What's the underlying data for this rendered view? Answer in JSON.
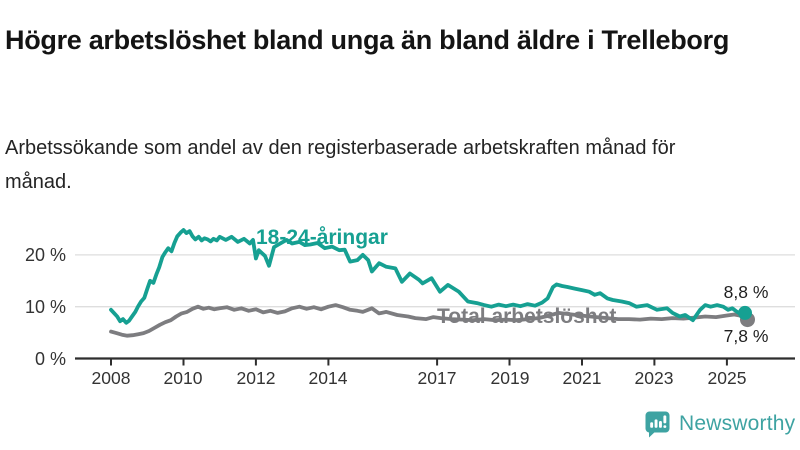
{
  "header": {
    "title": "Högre arbetslöshet bland unga än bland äldre i Trelleborg",
    "subtitle": "Arbetssökande som andel av den registerbaserade arbetskraften månad för månad."
  },
  "branding": {
    "name": "Newsworthy",
    "color": "#3ea3a2",
    "icon": "newsworthy-chart-bubble-icon"
  },
  "chart_data": {
    "type": "line",
    "title": "Högre arbetslöshet bland unga än bland äldre i Trelleborg",
    "subtitle": "Arbetssökande som andel av den registerbaserade arbetskraften månad för månad.",
    "unit": "%",
    "grid": "horizontal-only",
    "x_axis": {
      "ticks": [
        2008,
        2010,
        2012,
        2014,
        2017,
        2019,
        2021,
        2023,
        2025
      ],
      "tick_labels": [
        "2008",
        "2010",
        "2012",
        "2014",
        "2017",
        "2019",
        "2021",
        "2023",
        "2025"
      ],
      "range": [
        2007.0,
        2025.9
      ]
    },
    "y_axis": {
      "ticks": [
        0,
        10,
        20
      ],
      "tick_labels": [
        "0 %",
        "10 %",
        "20 %"
      ],
      "range": [
        0,
        27
      ]
    },
    "series": [
      {
        "name": "18-24-åringar",
        "color": "#16a092",
        "end_value": 8.8,
        "end_label": "8,8 %",
        "points": [
          [
            2008.0,
            9.4
          ],
          [
            2008.08,
            8.8
          ],
          [
            2008.17,
            8.1
          ],
          [
            2008.25,
            7.2
          ],
          [
            2008.33,
            7.6
          ],
          [
            2008.42,
            6.9
          ],
          [
            2008.5,
            7.3
          ],
          [
            2008.58,
            8.1
          ],
          [
            2008.67,
            9.0
          ],
          [
            2008.75,
            10.1
          ],
          [
            2008.83,
            11.0
          ],
          [
            2008.92,
            11.7
          ],
          [
            2009.0,
            13.4
          ],
          [
            2009.08,
            15.0
          ],
          [
            2009.17,
            14.6
          ],
          [
            2009.25,
            16.2
          ],
          [
            2009.33,
            17.6
          ],
          [
            2009.42,
            19.6
          ],
          [
            2009.5,
            20.5
          ],
          [
            2009.58,
            21.3
          ],
          [
            2009.67,
            20.7
          ],
          [
            2009.75,
            22.3
          ],
          [
            2009.83,
            23.6
          ],
          [
            2009.92,
            24.3
          ],
          [
            2010.0,
            24.8
          ],
          [
            2010.08,
            24.2
          ],
          [
            2010.17,
            24.6
          ],
          [
            2010.25,
            23.6
          ],
          [
            2010.33,
            23.0
          ],
          [
            2010.42,
            23.5
          ],
          [
            2010.5,
            22.8
          ],
          [
            2010.58,
            23.2
          ],
          [
            2010.67,
            23.0
          ],
          [
            2010.75,
            22.6
          ],
          [
            2010.83,
            23.1
          ],
          [
            2010.92,
            22.8
          ],
          [
            2011.0,
            23.5
          ],
          [
            2011.17,
            22.9
          ],
          [
            2011.33,
            23.5
          ],
          [
            2011.5,
            22.5
          ],
          [
            2011.67,
            23.1
          ],
          [
            2011.83,
            22.2
          ],
          [
            2011.92,
            22.9
          ],
          [
            2012.0,
            19.3
          ],
          [
            2012.08,
            20.9
          ],
          [
            2012.17,
            20.3
          ],
          [
            2012.25,
            19.8
          ],
          [
            2012.36,
            17.9
          ],
          [
            2012.5,
            21.5
          ],
          [
            2012.67,
            22.2
          ],
          [
            2012.85,
            22.9
          ],
          [
            2013.0,
            22.2
          ],
          [
            2013.2,
            22.5
          ],
          [
            2013.35,
            21.9
          ],
          [
            2013.5,
            22.0
          ],
          [
            2013.7,
            22.3
          ],
          [
            2013.9,
            21.3
          ],
          [
            2014.1,
            21.6
          ],
          [
            2014.3,
            20.9
          ],
          [
            2014.45,
            21.0
          ],
          [
            2014.6,
            18.7
          ],
          [
            2014.8,
            19.0
          ],
          [
            2014.95,
            20.0
          ],
          [
            2015.1,
            19.0
          ],
          [
            2015.2,
            16.8
          ],
          [
            2015.4,
            18.4
          ],
          [
            2015.6,
            17.7
          ],
          [
            2015.85,
            17.4
          ],
          [
            2016.03,
            14.8
          ],
          [
            2016.25,
            16.4
          ],
          [
            2016.5,
            15.2
          ],
          [
            2016.6,
            14.5
          ],
          [
            2016.85,
            15.5
          ],
          [
            2017.08,
            12.9
          ],
          [
            2017.3,
            14.2
          ],
          [
            2017.6,
            12.9
          ],
          [
            2017.85,
            11.0
          ],
          [
            2018.1,
            10.7
          ],
          [
            2018.3,
            10.3
          ],
          [
            2018.5,
            10.0
          ],
          [
            2018.7,
            10.4
          ],
          [
            2018.9,
            10.1
          ],
          [
            2019.1,
            10.4
          ],
          [
            2019.3,
            10.1
          ],
          [
            2019.5,
            10.5
          ],
          [
            2019.7,
            10.2
          ],
          [
            2019.9,
            10.8
          ],
          [
            2020.05,
            11.6
          ],
          [
            2020.2,
            13.8
          ],
          [
            2020.3,
            14.3
          ],
          [
            2020.45,
            14.0
          ],
          [
            2020.6,
            13.8
          ],
          [
            2020.8,
            13.5
          ],
          [
            2021.0,
            13.2
          ],
          [
            2021.2,
            12.9
          ],
          [
            2021.35,
            12.3
          ],
          [
            2021.5,
            12.6
          ],
          [
            2021.7,
            11.6
          ],
          [
            2021.85,
            11.3
          ],
          [
            2022.1,
            11.0
          ],
          [
            2022.3,
            10.7
          ],
          [
            2022.5,
            10.0
          ],
          [
            2022.8,
            10.3
          ],
          [
            2023.07,
            9.4
          ],
          [
            2023.35,
            9.7
          ],
          [
            2023.5,
            8.8
          ],
          [
            2023.7,
            8.1
          ],
          [
            2023.85,
            8.4
          ],
          [
            2024.06,
            7.4
          ],
          [
            2024.26,
            9.4
          ],
          [
            2024.4,
            10.3
          ],
          [
            2024.55,
            10.0
          ],
          [
            2024.73,
            10.3
          ],
          [
            2024.9,
            10.0
          ],
          [
            2025.03,
            9.4
          ],
          [
            2025.15,
            9.7
          ],
          [
            2025.28,
            9.0
          ],
          [
            2025.38,
            8.6
          ],
          [
            2025.5,
            8.8
          ]
        ]
      },
      {
        "name": "Total arbetslöshet",
        "color": "#7d7d80",
        "end_value": 7.8,
        "end_label": "7,8 %",
        "points": [
          [
            2008.0,
            5.2
          ],
          [
            2008.15,
            4.9
          ],
          [
            2008.3,
            4.6
          ],
          [
            2008.45,
            4.4
          ],
          [
            2008.6,
            4.5
          ],
          [
            2008.75,
            4.7
          ],
          [
            2008.9,
            4.9
          ],
          [
            2009.05,
            5.3
          ],
          [
            2009.2,
            5.9
          ],
          [
            2009.35,
            6.5
          ],
          [
            2009.5,
            7.0
          ],
          [
            2009.65,
            7.4
          ],
          [
            2009.8,
            8.1
          ],
          [
            2009.95,
            8.7
          ],
          [
            2010.1,
            9.0
          ],
          [
            2010.25,
            9.6
          ],
          [
            2010.4,
            10.0
          ],
          [
            2010.55,
            9.6
          ],
          [
            2010.7,
            9.8
          ],
          [
            2010.85,
            9.5
          ],
          [
            2011.0,
            9.7
          ],
          [
            2011.2,
            9.9
          ],
          [
            2011.4,
            9.4
          ],
          [
            2011.6,
            9.7
          ],
          [
            2011.8,
            9.2
          ],
          [
            2012.0,
            9.5
          ],
          [
            2012.2,
            8.9
          ],
          [
            2012.4,
            9.2
          ],
          [
            2012.6,
            8.8
          ],
          [
            2012.8,
            9.1
          ],
          [
            2013.0,
            9.7
          ],
          [
            2013.2,
            10.0
          ],
          [
            2013.4,
            9.6
          ],
          [
            2013.6,
            9.9
          ],
          [
            2013.8,
            9.5
          ],
          [
            2014.0,
            10.0
          ],
          [
            2014.2,
            10.3
          ],
          [
            2014.4,
            9.9
          ],
          [
            2014.6,
            9.4
          ],
          [
            2014.8,
            9.2
          ],
          [
            2014.95,
            9.0
          ],
          [
            2015.2,
            9.7
          ],
          [
            2015.4,
            8.7
          ],
          [
            2015.6,
            9.0
          ],
          [
            2015.9,
            8.4
          ],
          [
            2016.2,
            8.1
          ],
          [
            2016.4,
            7.8
          ],
          [
            2016.7,
            7.6
          ],
          [
            2016.9,
            8.0
          ],
          [
            2017.1,
            7.8
          ],
          [
            2017.4,
            7.6
          ],
          [
            2017.7,
            7.5
          ],
          [
            2018.0,
            7.4
          ],
          [
            2018.3,
            7.6
          ],
          [
            2018.6,
            7.4
          ],
          [
            2018.9,
            7.5
          ],
          [
            2019.2,
            7.4
          ],
          [
            2019.5,
            7.6
          ],
          [
            2019.8,
            7.8
          ],
          [
            2020.1,
            8.3
          ],
          [
            2020.35,
            8.8
          ],
          [
            2020.6,
            8.6
          ],
          [
            2020.85,
            8.4
          ],
          [
            2021.1,
            8.2
          ],
          [
            2021.4,
            8.0
          ],
          [
            2021.7,
            7.8
          ],
          [
            2022.0,
            7.6
          ],
          [
            2022.3,
            7.6
          ],
          [
            2022.6,
            7.5
          ],
          [
            2022.9,
            7.7
          ],
          [
            2023.2,
            7.6
          ],
          [
            2023.5,
            7.8
          ],
          [
            2023.8,
            7.7
          ],
          [
            2024.1,
            7.9
          ],
          [
            2024.4,
            8.1
          ],
          [
            2024.7,
            8.0
          ],
          [
            2025.0,
            8.3
          ],
          [
            2025.2,
            8.5
          ],
          [
            2025.35,
            8.3
          ],
          [
            2025.5,
            7.8
          ]
        ]
      }
    ],
    "legend_position": "inline-labels",
    "colors": {
      "gridline": "#dedede",
      "axis": "#2e2e2e",
      "axis_text": "#333333",
      "end_label_text": "#1f1f1f"
    }
  }
}
